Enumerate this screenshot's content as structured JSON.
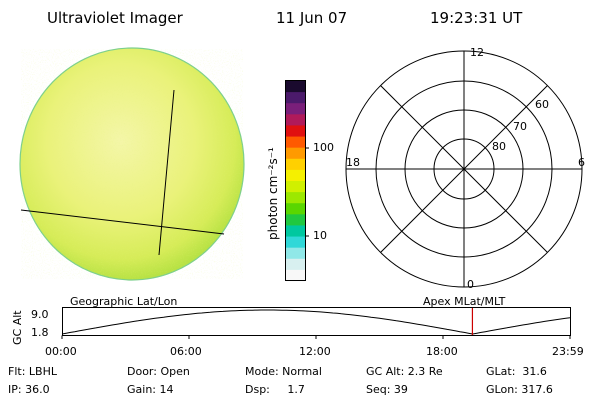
{
  "header": {
    "instrument": "Ultraviolet Imager",
    "date": "11 Jun 07",
    "time": "19:23:31 UT"
  },
  "colorbar": {
    "unit_label": "photon cm⁻²s⁻¹",
    "ticks": [
      "100",
      "10"
    ],
    "colors": [
      "#1a0a2e",
      "#4b1a6b",
      "#7a1f7a",
      "#b01a5a",
      "#e01010",
      "#ff5a00",
      "#ff9a00",
      "#ffd000",
      "#f5f000",
      "#d0f000",
      "#9ce800",
      "#5ad600",
      "#20c840",
      "#00c8a0",
      "#30d8d8",
      "#90e8e8",
      "#d8f0f0",
      "#f8f8f8"
    ]
  },
  "polar_plot": {
    "mlt_labels": {
      "top": "12",
      "left": "18",
      "right": "6",
      "bottom": "0"
    },
    "lat_labels": [
      "80",
      "70",
      "60"
    ]
  },
  "timeline": {
    "y_axis_label": "GC Alt",
    "y_ticks": [
      "9.0",
      "1.8"
    ],
    "left_title": "Geographic Lat/Lon",
    "right_title": "Apex MLat/MLT",
    "x_ticks": [
      "00:00",
      "06:00",
      "12:00",
      "18:00",
      "23:59"
    ],
    "current_time_hours": 19.39,
    "marker_color": "#cc0000"
  },
  "info": {
    "flt": "Flt: LBHL",
    "ip": "IP: 36.0",
    "door": "Door: Open",
    "gain": "Gain: 14",
    "mode": "Mode: Normal",
    "dsp": "Dsp:     1.7",
    "gc_alt": "GC Alt: 2.3 Re",
    "seq": "Seq: 39",
    "glat": "GLat:  31.6",
    "glon": "GLon: 317.6"
  }
}
